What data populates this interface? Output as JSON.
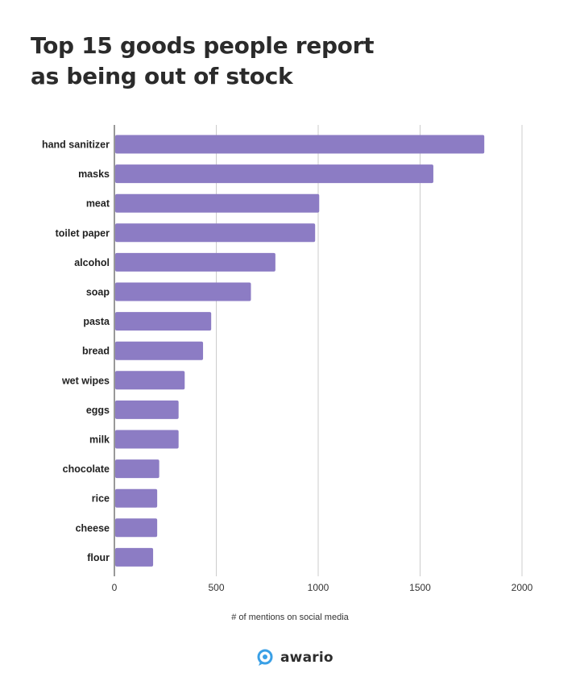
{
  "chart_data": {
    "type": "bar",
    "orientation": "horizontal",
    "title_lines": [
      "Top 15 goods people report",
      "as being out of stock"
    ],
    "categories": [
      "hand sanitizer",
      "masks",
      "meat",
      "toilet paper",
      "alcohol",
      "soap",
      "pasta",
      "bread",
      "wet wipes",
      "eggs",
      "milk",
      "chocolate",
      "rice",
      "cheese",
      "flour"
    ],
    "values": [
      1815,
      1565,
      1005,
      985,
      790,
      670,
      475,
      435,
      345,
      315,
      315,
      220,
      210,
      210,
      190
    ],
    "xlabel": "# of mentions on social media",
    "xlim": [
      0,
      2000
    ],
    "xticks": [
      "0",
      "500",
      "1000",
      "1500",
      "2000"
    ],
    "grid": true,
    "bar_color": "#8c7cc4"
  },
  "brand": {
    "name": "awario",
    "icon": "awario-logo-icon",
    "color": "#3aa0e6"
  }
}
